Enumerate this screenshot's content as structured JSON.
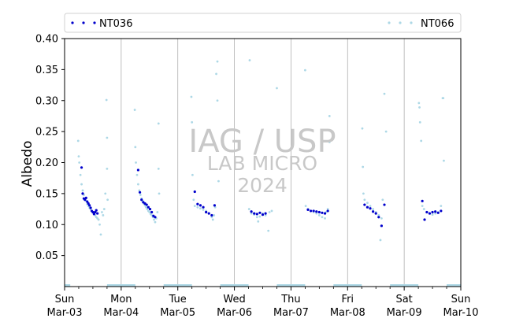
{
  "chart_data": {
    "type": "scatter",
    "title": "",
    "xlabel": "",
    "ylabel": "Albedo",
    "ylim": [
      0.0,
      0.4
    ],
    "xlim": [
      "2024-03-03",
      "2024-03-10"
    ],
    "y_ticks": [
      "0.05",
      "0.10",
      "0.15",
      "0.20",
      "0.25",
      "0.30",
      "0.35",
      "0.40"
    ],
    "x_ticks": [
      {
        "day": "Sun",
        "date": "Mar-03"
      },
      {
        "day": "Mon",
        "date": "Mar-04"
      },
      {
        "day": "Tue",
        "date": "Mar-05"
      },
      {
        "day": "Wed",
        "date": "Mar-06"
      },
      {
        "day": "Thu",
        "date": "Mar-07"
      },
      {
        "day": "Fri",
        "date": "Mar-08"
      },
      {
        "day": "Sat",
        "date": "Mar-09"
      },
      {
        "day": "Sun",
        "date": "Mar-10"
      }
    ],
    "grid": "vertical-major",
    "legend_placement": "top",
    "watermark": {
      "line1": "IAG / USP",
      "line2": "LAB MICRO",
      "line3": "2024"
    },
    "series": [
      {
        "name": "NT036",
        "color": "#0000cc",
        "points": [
          [
            0.3,
            0.192
          ],
          [
            0.32,
            0.15
          ],
          [
            0.34,
            0.142
          ],
          [
            0.36,
            0.14
          ],
          [
            0.38,
            0.143
          ],
          [
            0.4,
            0.137
          ],
          [
            0.42,
            0.134
          ],
          [
            0.44,
            0.131
          ],
          [
            0.46,
            0.127
          ],
          [
            0.48,
            0.122
          ],
          [
            0.5,
            0.12
          ],
          [
            0.52,
            0.117
          ],
          [
            0.54,
            0.12
          ],
          [
            0.56,
            0.123
          ],
          [
            0.58,
            0.118
          ],
          [
            1.3,
            0.188
          ],
          [
            1.33,
            0.152
          ],
          [
            1.36,
            0.14
          ],
          [
            1.39,
            0.136
          ],
          [
            1.42,
            0.134
          ],
          [
            1.45,
            0.132
          ],
          [
            1.48,
            0.128
          ],
          [
            1.51,
            0.125
          ],
          [
            1.54,
            0.12
          ],
          [
            1.57,
            0.114
          ],
          [
            1.6,
            0.112
          ],
          [
            2.3,
            0.153
          ],
          [
            2.35,
            0.133
          ],
          [
            2.4,
            0.131
          ],
          [
            2.45,
            0.128
          ],
          [
            2.5,
            0.12
          ],
          [
            2.55,
            0.118
          ],
          [
            2.6,
            0.115
          ],
          [
            2.65,
            0.131
          ],
          [
            3.3,
            0.121
          ],
          [
            3.35,
            0.118
          ],
          [
            3.4,
            0.117
          ],
          [
            3.45,
            0.119
          ],
          [
            3.5,
            0.116
          ],
          [
            3.55,
            0.118
          ],
          [
            4.3,
            0.124
          ],
          [
            4.35,
            0.122
          ],
          [
            4.4,
            0.122
          ],
          [
            4.45,
            0.121
          ],
          [
            4.5,
            0.12
          ],
          [
            4.55,
            0.119
          ],
          [
            4.6,
            0.118
          ],
          [
            4.65,
            0.122
          ],
          [
            5.3,
            0.132
          ],
          [
            5.35,
            0.128
          ],
          [
            5.4,
            0.126
          ],
          [
            5.45,
            0.121
          ],
          [
            5.5,
            0.118
          ],
          [
            5.55,
            0.112
          ],
          [
            5.6,
            0.098
          ],
          [
            5.65,
            0.132
          ],
          [
            6.32,
            0.138
          ],
          [
            6.36,
            0.108
          ],
          [
            6.4,
            0.12
          ],
          [
            6.45,
            0.118
          ],
          [
            6.5,
            0.12
          ],
          [
            6.55,
            0.121
          ],
          [
            6.6,
            0.119
          ],
          [
            6.65,
            0.122
          ]
        ]
      },
      {
        "name": "NT066",
        "color": "#add8e6",
        "points": [
          [
            0.24,
            0.235
          ],
          [
            0.25,
            0.21
          ],
          [
            0.26,
            0.2
          ],
          [
            0.28,
            0.18
          ],
          [
            0.3,
            0.165
          ],
          [
            0.32,
            0.155
          ],
          [
            0.34,
            0.148
          ],
          [
            0.36,
            0.142
          ],
          [
            0.38,
            0.138
          ],
          [
            0.4,
            0.133
          ],
          [
            0.42,
            0.13
          ],
          [
            0.44,
            0.127
          ],
          [
            0.46,
            0.125
          ],
          [
            0.48,
            0.122
          ],
          [
            0.5,
            0.12
          ],
          [
            0.52,
            0.118
          ],
          [
            0.54,
            0.115
          ],
          [
            0.56,
            0.112
          ],
          [
            0.58,
            0.11
          ],
          [
            0.6,
            0.108
          ],
          [
            0.62,
            0.1
          ],
          [
            0.64,
            0.084
          ],
          [
            0.66,
            0.12
          ],
          [
            0.68,
            0.115
          ],
          [
            0.7,
            0.125
          ],
          [
            0.72,
            0.15
          ],
          [
            0.74,
            0.301
          ],
          [
            0.75,
            0.24
          ],
          [
            0.75,
            0.19
          ],
          [
            0.76,
            0.14
          ],
          [
            1.24,
            0.285
          ],
          [
            1.25,
            0.225
          ],
          [
            1.26,
            0.2
          ],
          [
            1.28,
            0.18
          ],
          [
            1.3,
            0.165
          ],
          [
            1.32,
            0.155
          ],
          [
            1.34,
            0.148
          ],
          [
            1.36,
            0.142
          ],
          [
            1.38,
            0.138
          ],
          [
            1.4,
            0.134
          ],
          [
            1.42,
            0.131
          ],
          [
            1.44,
            0.128
          ],
          [
            1.46,
            0.125
          ],
          [
            1.48,
            0.122
          ],
          [
            1.5,
            0.12
          ],
          [
            1.52,
            0.117
          ],
          [
            1.54,
            0.115
          ],
          [
            1.56,
            0.112
          ],
          [
            1.58,
            0.108
          ],
          [
            1.6,
            0.104
          ],
          [
            1.62,
            0.11
          ],
          [
            1.64,
            0.12
          ],
          [
            1.66,
            0.263
          ],
          [
            1.66,
            0.19
          ],
          [
            1.67,
            0.15
          ],
          [
            2.24,
            0.306
          ],
          [
            2.25,
            0.265
          ],
          [
            2.26,
            0.18
          ],
          [
            2.28,
            0.14
          ],
          [
            2.3,
            0.13
          ],
          [
            2.35,
            0.128
          ],
          [
            2.4,
            0.126
          ],
          [
            2.45,
            0.124
          ],
          [
            2.5,
            0.122
          ],
          [
            2.55,
            0.118
          ],
          [
            2.6,
            0.112
          ],
          [
            2.62,
            0.108
          ],
          [
            2.64,
            0.115
          ],
          [
            2.66,
            0.128
          ],
          [
            2.68,
            0.343
          ],
          [
            2.7,
            0.363
          ],
          [
            2.7,
            0.3
          ],
          [
            2.72,
            0.17
          ],
          [
            3.26,
            0.125
          ],
          [
            3.3,
            0.118
          ],
          [
            3.35,
            0.116
          ],
          [
            3.4,
            0.112
          ],
          [
            3.42,
            0.105
          ],
          [
            3.45,
            0.113
          ],
          [
            3.5,
            0.118
          ],
          [
            3.55,
            0.115
          ],
          [
            3.6,
            0.09
          ],
          [
            3.62,
            0.12
          ],
          [
            3.27,
            0.365
          ],
          [
            3.66,
            0.122
          ],
          [
            4.26,
            0.13
          ],
          [
            4.3,
            0.125
          ],
          [
            4.35,
            0.122
          ],
          [
            4.4,
            0.12
          ],
          [
            4.45,
            0.118
          ],
          [
            4.5,
            0.115
          ],
          [
            4.55,
            0.112
          ],
          [
            4.6,
            0.11
          ],
          [
            4.62,
            0.12
          ],
          [
            4.65,
            0.125
          ],
          [
            4.25,
            0.349
          ],
          [
            4.68,
            0.275
          ],
          [
            4.68,
            0.233
          ],
          [
            3.75,
            0.32
          ],
          [
            5.26,
            0.255
          ],
          [
            5.27,
            0.193
          ],
          [
            5.28,
            0.15
          ],
          [
            5.3,
            0.14
          ],
          [
            5.35,
            0.135
          ],
          [
            5.4,
            0.13
          ],
          [
            5.45,
            0.125
          ],
          [
            5.5,
            0.12
          ],
          [
            5.55,
            0.115
          ],
          [
            5.58,
            0.075
          ],
          [
            5.6,
            0.11
          ],
          [
            5.62,
            0.14
          ],
          [
            5.65,
            0.311
          ],
          [
            5.68,
            0.25
          ],
          [
            6.26,
            0.296
          ],
          [
            6.27,
            0.289
          ],
          [
            6.28,
            0.265
          ],
          [
            6.3,
            0.235
          ],
          [
            6.32,
            0.13
          ],
          [
            6.35,
            0.125
          ],
          [
            6.4,
            0.12
          ],
          [
            6.45,
            0.118
          ],
          [
            6.5,
            0.116
          ],
          [
            6.55,
            0.118
          ],
          [
            6.6,
            0.12
          ],
          [
            6.65,
            0.13
          ],
          [
            6.68,
            0.304
          ],
          [
            6.69,
            0.304
          ],
          [
            6.7,
            0.203
          ]
        ]
      }
    ]
  }
}
